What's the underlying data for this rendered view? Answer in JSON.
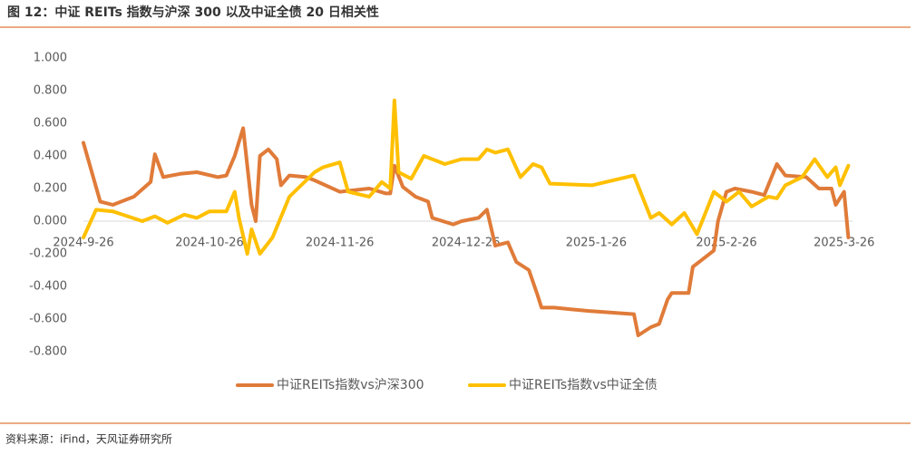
{
  "chart_data": {
    "type": "line",
    "title": "图 12：中证 REITs 指数与沪深 300 以及中证全债 20 日相关性",
    "source": "资料来源：iFind，天风证券研究所",
    "legend": "bottom",
    "grid": false,
    "xlim": [
      "2024-9-26",
      "2025-3-28"
    ],
    "xticks": [
      "2024-9-26",
      "2024-10-26",
      "2024-11-26",
      "2024-12-26",
      "2025-1-26",
      "2025-2-26",
      "2025-3-26"
    ],
    "ylim": [
      -0.8,
      1.0
    ],
    "yticks": [
      {
        "value": 1.0,
        "label": "1.000"
      },
      {
        "value": 0.8,
        "label": "0.800"
      },
      {
        "value": 0.6,
        "label": "0.600"
      },
      {
        "value": 0.4,
        "label": "0.400"
      },
      {
        "value": 0.2,
        "label": "0.200"
      },
      {
        "value": 0,
        "label": "0.000"
      },
      {
        "value": -0.2,
        "label": "-0.200"
      },
      {
        "value": -0.4,
        "label": "-0.400"
      },
      {
        "value": -0.6,
        "label": "-0.600"
      },
      {
        "value": -0.8,
        "label": "-0.800"
      }
    ],
    "series": [
      {
        "name": "中证REITs指数vs沪深300",
        "color": "#E07B39",
        "x": [
          "2024-9-26",
          "2024-9-30",
          "2024-10-3",
          "2024-10-8",
          "2024-10-12",
          "2024-10-13",
          "2024-10-15",
          "2024-10-19",
          "2024-10-23",
          "2024-10-28",
          "2024-10-30",
          "2024-11-1",
          "2024-11-3",
          "2024-11-5",
          "2024-11-6",
          "2024-11-7",
          "2024-11-9",
          "2024-11-11",
          "2024-11-12",
          "2024-11-14",
          "2024-11-18",
          "2024-11-20",
          "2024-11-26",
          "2024-12-3",
          "2024-12-7",
          "2024-12-8",
          "2024-12-9",
          "2024-12-11",
          "2024-12-14",
          "2024-12-17",
          "2024-12-18",
          "2024-12-23",
          "2024-12-25",
          "2024-12-29",
          "2024-12-31",
          "2025-1-2",
          "2025-1-5",
          "2025-1-7",
          "2025-1-10",
          "2025-1-12",
          "2025-1-13",
          "2025-1-16",
          "2025-1-20",
          "2025-1-24",
          "2025-2-4",
          "2025-2-5",
          "2025-2-8",
          "2025-2-10",
          "2025-2-12",
          "2025-2-13",
          "2025-2-17",
          "2025-2-18",
          "2025-2-23",
          "2025-2-24",
          "2025-2-26",
          "2025-2-28",
          "2025-3-4",
          "2025-3-7",
          "2025-3-10",
          "2025-3-12",
          "2025-3-17",
          "2025-3-20",
          "2025-3-23",
          "2025-3-24",
          "2025-3-26",
          "2025-3-27"
        ],
        "values": [
          0.48,
          0.12,
          0.1,
          0.15,
          0.24,
          0.41,
          0.27,
          0.29,
          0.3,
          0.27,
          0.28,
          0.4,
          0.57,
          0.1,
          0.0,
          0.4,
          0.44,
          0.38,
          0.22,
          0.28,
          0.27,
          0.25,
          0.18,
          0.2,
          0.17,
          0.17,
          0.34,
          0.21,
          0.15,
          0.12,
          0.02,
          -0.02,
          0.0,
          0.02,
          0.07,
          -0.15,
          -0.13,
          -0.25,
          -0.3,
          -0.45,
          -0.53,
          -0.53,
          -0.54,
          -0.55,
          -0.57,
          -0.7,
          -0.65,
          -0.63,
          -0.48,
          -0.44,
          -0.44,
          -0.28,
          -0.18,
          0.0,
          0.18,
          0.2,
          0.18,
          0.16,
          0.35,
          0.28,
          0.27,
          0.2,
          0.2,
          0.1,
          0.18,
          -0.1
        ]
      },
      {
        "name": "中证REITs指数vs中证全债",
        "color": "#FFC000",
        "x": [
          "2024-9-26",
          "2024-9-29",
          "2024-10-3",
          "2024-10-10",
          "2024-10-13",
          "2024-10-16",
          "2024-10-20",
          "2024-10-23",
          "2024-10-26",
          "2024-10-30",
          "2024-11-1",
          "2024-11-2",
          "2024-11-4",
          "2024-11-5",
          "2024-11-7",
          "2024-11-10",
          "2024-11-14",
          "2024-11-20",
          "2024-11-22",
          "2024-11-26",
          "2024-11-28",
          "2024-12-3",
          "2024-12-6",
          "2024-12-8",
          "2024-12-9",
          "2024-12-10",
          "2024-12-13",
          "2024-12-16",
          "2024-12-21",
          "2024-12-25",
          "2024-12-29",
          "2024-12-31",
          "2025-1-2",
          "2025-1-5",
          "2025-1-8",
          "2025-1-11",
          "2025-1-13",
          "2025-1-15",
          "2025-1-25",
          "2025-2-4",
          "2025-2-8",
          "2025-2-10",
          "2025-2-13",
          "2025-2-16",
          "2025-2-19",
          "2025-2-23",
          "2025-2-26",
          "2025-3-1",
          "2025-3-4",
          "2025-3-8",
          "2025-3-10",
          "2025-3-12",
          "2025-3-16",
          "2025-3-19",
          "2025-3-22",
          "2025-3-24",
          "2025-3-25",
          "2025-3-27"
        ],
        "values": [
          -0.1,
          0.07,
          0.06,
          0.0,
          0.03,
          -0.01,
          0.04,
          0.02,
          0.06,
          0.06,
          0.18,
          0.02,
          -0.2,
          -0.05,
          -0.2,
          -0.1,
          0.15,
          0.3,
          0.33,
          0.36,
          0.18,
          0.15,
          0.24,
          0.2,
          0.74,
          0.3,
          0.26,
          0.4,
          0.35,
          0.38,
          0.38,
          0.44,
          0.42,
          0.44,
          0.27,
          0.35,
          0.33,
          0.23,
          0.22,
          0.28,
          0.02,
          0.05,
          -0.02,
          0.05,
          -0.08,
          0.18,
          0.12,
          0.18,
          0.09,
          0.15,
          0.14,
          0.22,
          0.27,
          0.38,
          0.27,
          0.33,
          0.22,
          0.34
        ]
      }
    ]
  }
}
